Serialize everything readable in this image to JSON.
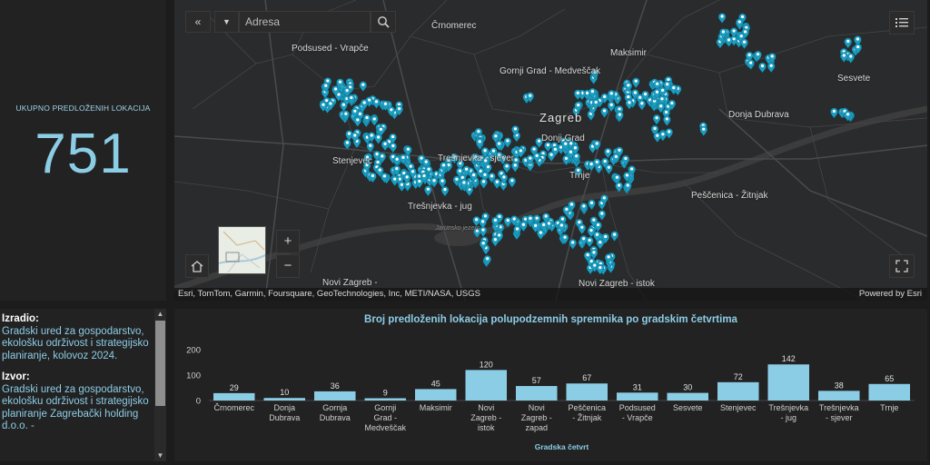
{
  "indicator": {
    "label": "UKUPNO PREDLOŽENIH LOKACIJA",
    "value": "751",
    "color": "#8ccde6"
  },
  "map": {
    "search": {
      "placeholder": "Adresa"
    },
    "buttons": {
      "collapse": "«",
      "dropdown": "▼",
      "search": "search-icon",
      "legend": "list-icon",
      "home": "home-icon",
      "zoom_in": "+",
      "zoom_out": "−",
      "fullscreen": "fullscreen-icon"
    },
    "places": [
      {
        "id": "crnomerec",
        "name": "Črnomerec"
      },
      {
        "id": "podsused",
        "name": "Podsused - Vrapče"
      },
      {
        "id": "maksimir",
        "name": "Maksimir"
      },
      {
        "id": "gornji",
        "name": "Gornji Grad - Medveščak"
      },
      {
        "id": "zagreb",
        "name": "Zagreb"
      },
      {
        "id": "donjagrad",
        "name": "Donji Grad"
      },
      {
        "id": "donjadubrava",
        "name": "Donja Dubrava"
      },
      {
        "id": "sesvete",
        "name": "Sesvete"
      },
      {
        "id": "stenjevec",
        "name": "Stenjevec"
      },
      {
        "id": "tresnjevka_sjever",
        "name": "Trešnjevka - sjever"
      },
      {
        "id": "trnje",
        "name": "Trnje"
      },
      {
        "id": "pescenica",
        "name": "Peščenica - Žitnjak"
      },
      {
        "id": "tresnjevka_jug",
        "name": "Trešnjevka - jug"
      },
      {
        "id": "novizagreb_istok",
        "name": "Novi Zagreb - istok"
      },
      {
        "id": "novizagreb",
        "name": "Novi Zagreb -"
      }
    ],
    "lake_label": "Jarunsko jezero",
    "attribution": "Esri, TomTom, Garmin, Foursquare, GeoTechnologies, Inc, METI/NASA, USGS",
    "powered_by": "Powered by Esri",
    "marker_color": "#1a9ec2"
  },
  "info": {
    "made_by_heading": "Izradio:",
    "made_by_text": "Gradski ured za gospodarstvo, ekološku održivost i strategijsko planiranje, kolovoz 2024.",
    "source_heading": "Izvor:",
    "source_text": "Gradski ured za gospodarstvo, ekološku održivost i strategijsko planiranje Zagrebački holding d.o.o. -"
  },
  "chart_data": {
    "type": "bar",
    "title": "Broj predloženih lokacija polupodzemnih spremnika po gradskim četvrtima",
    "xlabel": "Gradska četvrt",
    "ylabel": "",
    "ylim": [
      0,
      200
    ],
    "yticks": [
      0,
      100,
      200
    ],
    "bar_color": "#8ccde6",
    "categories": [
      "Črnomerec",
      "Donja Dubrava",
      "Gornja Dubrava",
      "Gornji Grad - Medveščak",
      "Maksimir",
      "Novi Zagreb - istok",
      "Novi Zagreb - zapad",
      "Peščenica - Žitnjak",
      "Podsused - Vrapče",
      "Sesvete",
      "Stenjevec",
      "Trešnjevka - jug",
      "Trešnjevka - sjever",
      "Trnje"
    ],
    "category_lines": [
      [
        "Črnomerec"
      ],
      [
        "Donja",
        "Dubrava"
      ],
      [
        "Gornja",
        "Dubrava"
      ],
      [
        "Gornji",
        "Grad -",
        "Medveščak"
      ],
      [
        "Maksimir"
      ],
      [
        "Novi",
        "Zagreb -",
        "istok"
      ],
      [
        "Novi",
        "Zagreb -",
        "zapad"
      ],
      [
        "Peščenica",
        "- Žitnjak"
      ],
      [
        "Podsused",
        "- Vrapče"
      ],
      [
        "Sesvete"
      ],
      [
        "Stenjevec"
      ],
      [
        "Trešnjevka",
        "- jug"
      ],
      [
        "Trešnjevka",
        "- sjever"
      ],
      [
        "Trnje"
      ]
    ],
    "values": [
      29,
      10,
      36,
      9,
      45,
      120,
      57,
      67,
      31,
      30,
      72,
      142,
      38,
      65
    ],
    "grid": false,
    "legend": "none"
  }
}
